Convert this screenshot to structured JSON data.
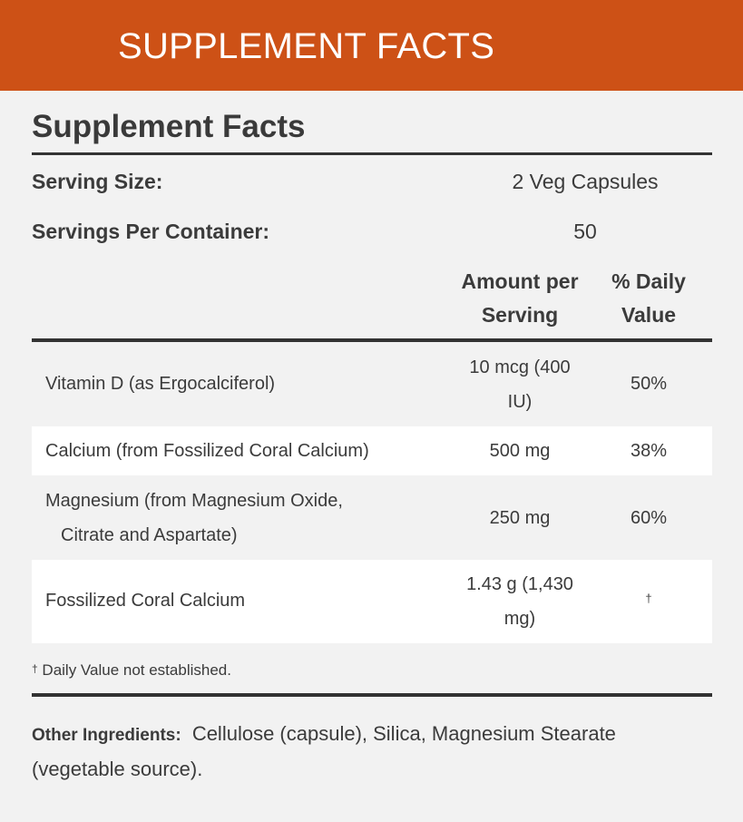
{
  "banner": {
    "title": "SUPPLEMENT FACTS",
    "color": "#cd5116"
  },
  "facts": {
    "title": "Supplement Facts",
    "serving_size_label": "Serving Size:",
    "serving_size_value": "2 Veg Capsules",
    "servings_per_container_label": "Servings Per Container:",
    "servings_per_container_value": "50",
    "column_headers": {
      "amount_line1": "Amount per",
      "amount_line2": "Serving",
      "dv_line1": "% Daily",
      "dv_line2": "Value"
    },
    "nutrients": [
      {
        "name": "Vitamin D (as Ergocalciferol)",
        "name_line2": "",
        "amount_line1": "10 mcg (400",
        "amount_line2": "IU)",
        "dv": "50%"
      },
      {
        "name": "Calcium (from Fossilized Coral Calcium)",
        "name_line2": "",
        "amount_line1": "500 mg",
        "amount_line2": "",
        "dv": "38%"
      },
      {
        "name": "Magnesium (from Magnesium Oxide,",
        "name_line2": "Citrate and Aspartate)",
        "amount_line1": "250 mg",
        "amount_line2": "",
        "dv": "60%"
      },
      {
        "name": "Fossilized Coral Calcium",
        "name_line2": "",
        "amount_line1": "1.43 g (1,430",
        "amount_line2": "mg)",
        "dv": "†"
      }
    ],
    "footnote_mark": "†",
    "footnote_text": "Daily Value not established.",
    "other_ingredients_label": "Other Ingredients:",
    "other_ingredients_text": "Cellulose (capsule), Silica, Magnesium Stearate (vegetable source)."
  }
}
